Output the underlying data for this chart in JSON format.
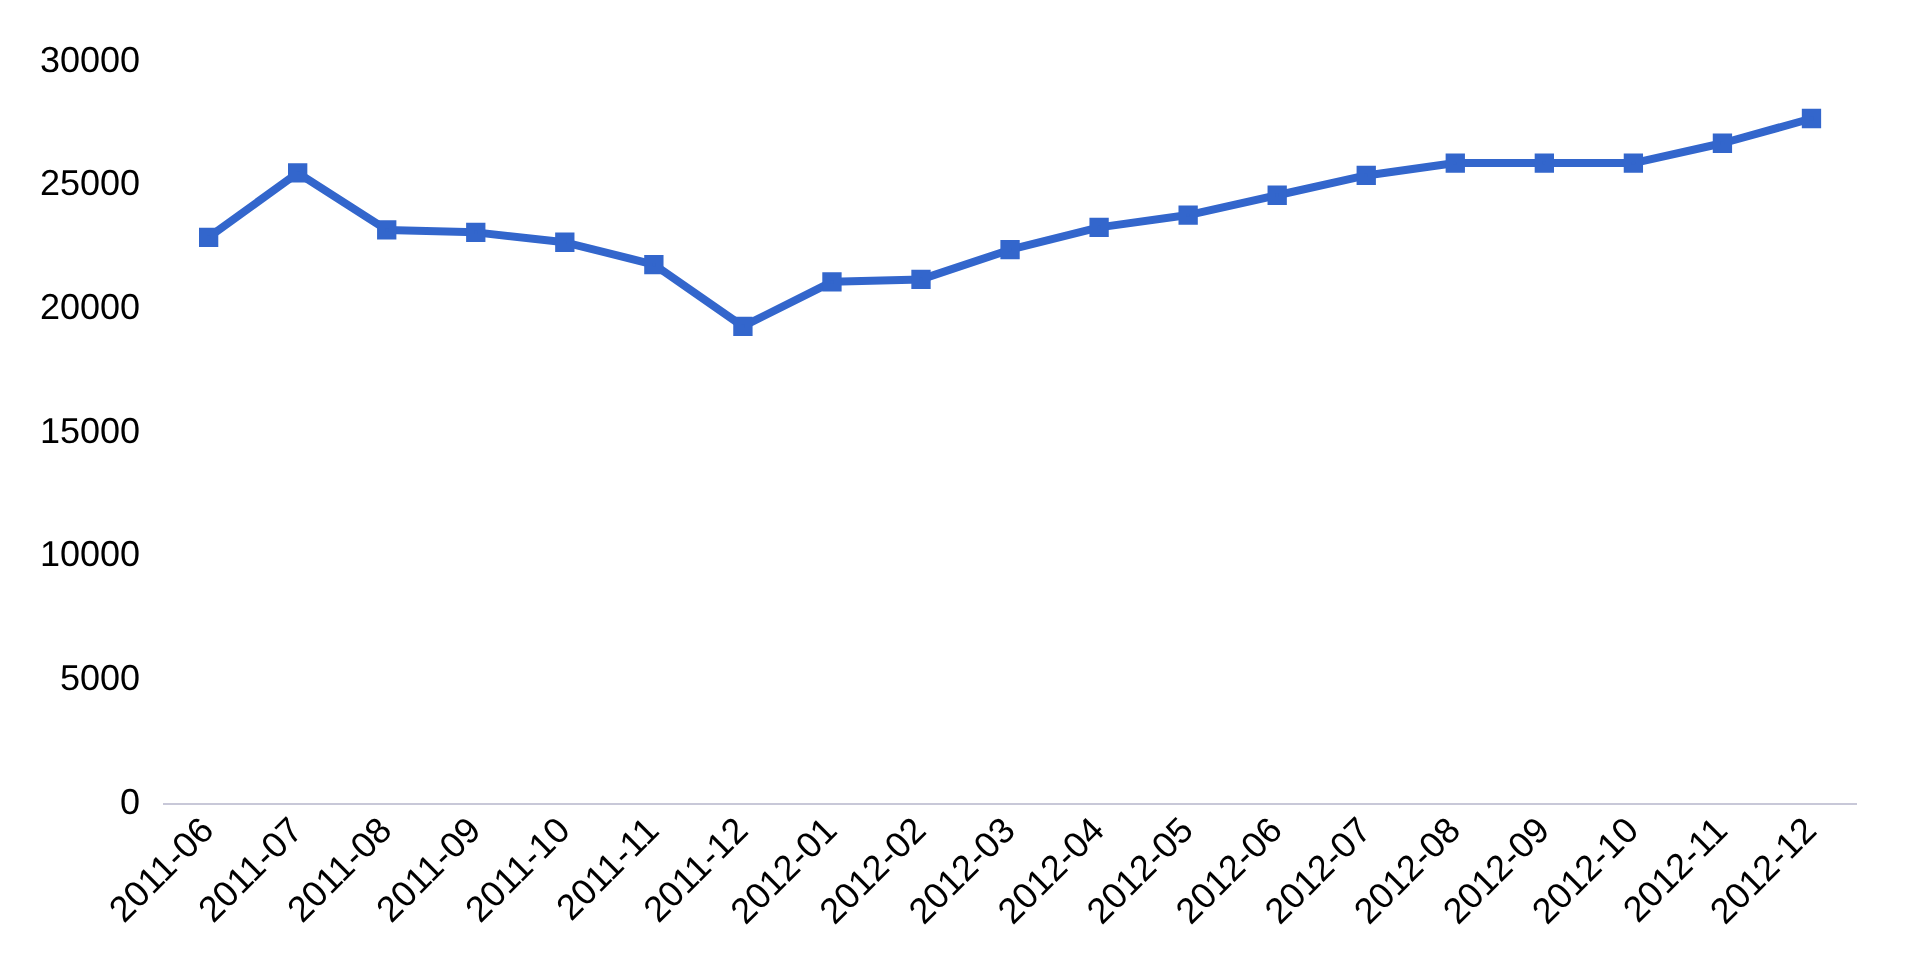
{
  "chart_data": {
    "type": "line",
    "categories": [
      "2011-06",
      "2011-07",
      "2011-08",
      "2011-09",
      "2011-10",
      "2011-11",
      "2011-12",
      "2012-01",
      "2012-02",
      "2012-03",
      "2012-04",
      "2012-05",
      "2012-06",
      "2012-07",
      "2012-08",
      "2012-09",
      "2012-10",
      "2012-11",
      "2012-12"
    ],
    "series": [
      {
        "color": "#3366cc",
        "values": [
          22900,
          25500,
          23200,
          23100,
          22700,
          21800,
          19300,
          21100,
          21200,
          22400,
          23300,
          23800,
          24600,
          25400,
          25900,
          25900,
          25900,
          26700,
          27700
        ]
      }
    ],
    "ylim": [
      0,
      30000
    ],
    "yticks": [
      0,
      5000,
      10000,
      15000,
      20000,
      25000,
      30000
    ],
    "grid": false,
    "legend": false,
    "marker": "square",
    "line_style": "solid"
  }
}
